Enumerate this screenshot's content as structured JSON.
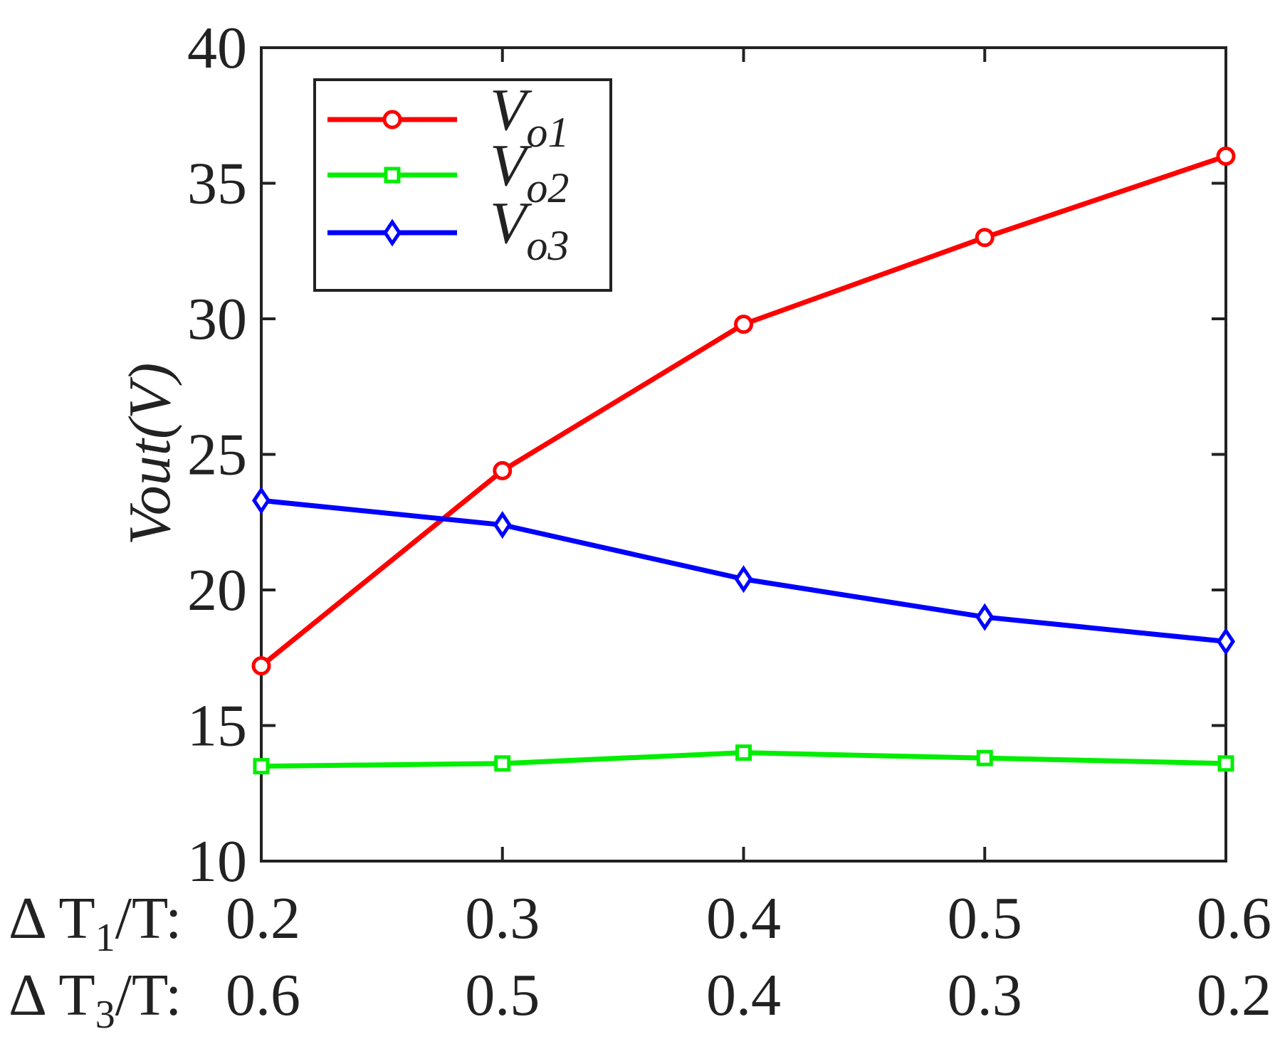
{
  "chart_data": {
    "type": "line",
    "title": "",
    "ylabel": "Vout(V)",
    "ylim": [
      10,
      40
    ],
    "yticks": [
      10,
      15,
      20,
      25,
      30,
      35,
      40
    ],
    "xlim": [
      0.2,
      0.6
    ],
    "x": [
      0.2,
      0.3,
      0.4,
      0.5,
      0.6
    ],
    "x_rows": [
      {
        "label_prefix": "Δ T",
        "label_sub": "1",
        "label_suffix": "/T:",
        "ticks": [
          "0.2",
          "0.3",
          "0.4",
          "0.5",
          "0.6"
        ]
      },
      {
        "label_prefix": "Δ T",
        "label_sub": "3",
        "label_suffix": "/T:",
        "ticks": [
          "0.6",
          "0.5",
          "0.4",
          "0.3",
          "0.2"
        ]
      }
    ],
    "grid": false,
    "legend_position": "top-left",
    "series": [
      {
        "name": "V",
        "sub": "o1",
        "color": "#ff0000",
        "marker": "circle",
        "values": [
          17.2,
          24.4,
          29.8,
          33.0,
          36.0
        ]
      },
      {
        "name": "V",
        "sub": "o2",
        "color": "#00ee00",
        "marker": "square",
        "values": [
          13.5,
          13.6,
          14.0,
          13.8,
          13.6
        ]
      },
      {
        "name": "V",
        "sub": "o3",
        "color": "#0000ff",
        "marker": "diamond",
        "values": [
          23.3,
          22.4,
          20.4,
          19.0,
          18.1
        ]
      }
    ]
  }
}
